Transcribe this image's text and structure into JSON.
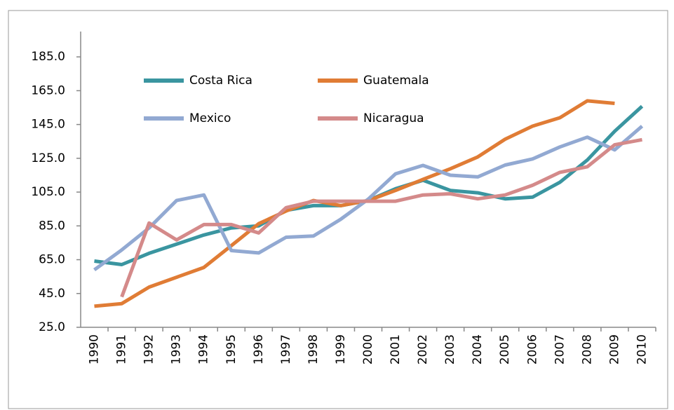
{
  "chart_data": {
    "type": "line",
    "categories": [
      "1990",
      "1991",
      "1992",
      "1993",
      "1994",
      "1995",
      "1996",
      "1997",
      "1998",
      "1999",
      "2000",
      "2001",
      "2002",
      "2003",
      "2004",
      "2005",
      "2006",
      "2007",
      "2008",
      "2009",
      "2010"
    ],
    "series": [
      {
        "name": "Costa Rica",
        "color": "#3a95a0",
        "values": [
          64.2,
          62.1,
          68.8,
          74.2,
          79.6,
          83.8,
          85,
          94.2,
          97,
          97,
          100,
          107,
          112,
          106,
          104.6,
          101,
          102,
          110.8,
          124,
          141,
          155.8
        ]
      },
      {
        "name": "Guatemala",
        "color": "#e07c35",
        "values": [
          37.5,
          39,
          48.8,
          54.6,
          60.4,
          73.3,
          86.3,
          93.8,
          100,
          97,
          100,
          106,
          112.5,
          118.8,
          125.8,
          136.3,
          144,
          149,
          159,
          157.5,
          null
        ]
      },
      {
        "name": "Mexico",
        "color": "#92a9d2",
        "values": [
          59,
          70.8,
          83.8,
          100,
          103.3,
          70.4,
          69,
          78.3,
          79,
          89,
          100.8,
          115.8,
          120.8,
          115,
          114,
          121,
          124.6,
          131.7,
          137.5,
          130,
          144
        ]
      },
      {
        "name": "Nicaragua",
        "color": "#d48a8a",
        "values": [
          null,
          43,
          86.7,
          76.7,
          85.8,
          85.8,
          80.8,
          95.8,
          99.6,
          99.6,
          99.6,
          99.6,
          103.3,
          104,
          101,
          103.3,
          109,
          116.7,
          120,
          133,
          136
        ]
      }
    ],
    "ylim": [
      25,
      200
    ],
    "yticks": [
      {
        "value": 25,
        "label": "25.0"
      },
      {
        "value": 45,
        "label": "45.0"
      },
      {
        "value": 65,
        "label": "65.0"
      },
      {
        "value": 85,
        "label": "85.0"
      },
      {
        "value": 105,
        "label": "105.0"
      },
      {
        "value": 125,
        "label": "125.0"
      },
      {
        "value": 145,
        "label": "145.0"
      },
      {
        "value": 165,
        "label": "165.0"
      },
      {
        "value": 185,
        "label": "185.0"
      }
    ],
    "grid": false
  }
}
